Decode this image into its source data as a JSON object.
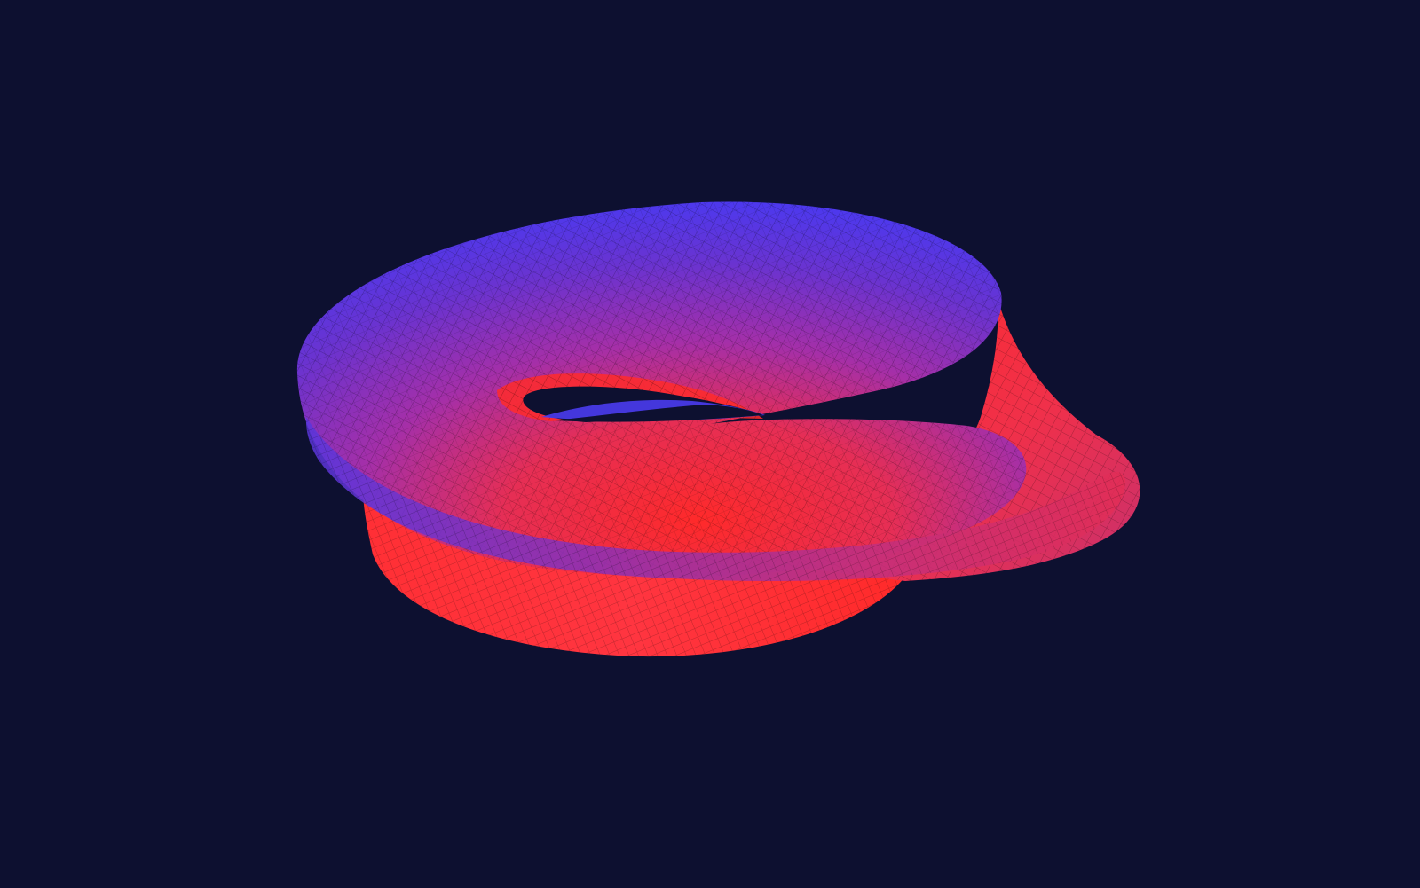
{
  "scene": {
    "object": "twisted-ring-surface",
    "background_color": "#0d1030",
    "colors": {
      "side_a": "#3a3cff",
      "side_b": "#ff2a2a",
      "mid": "#8a30c8",
      "wire": "#000000"
    }
  }
}
